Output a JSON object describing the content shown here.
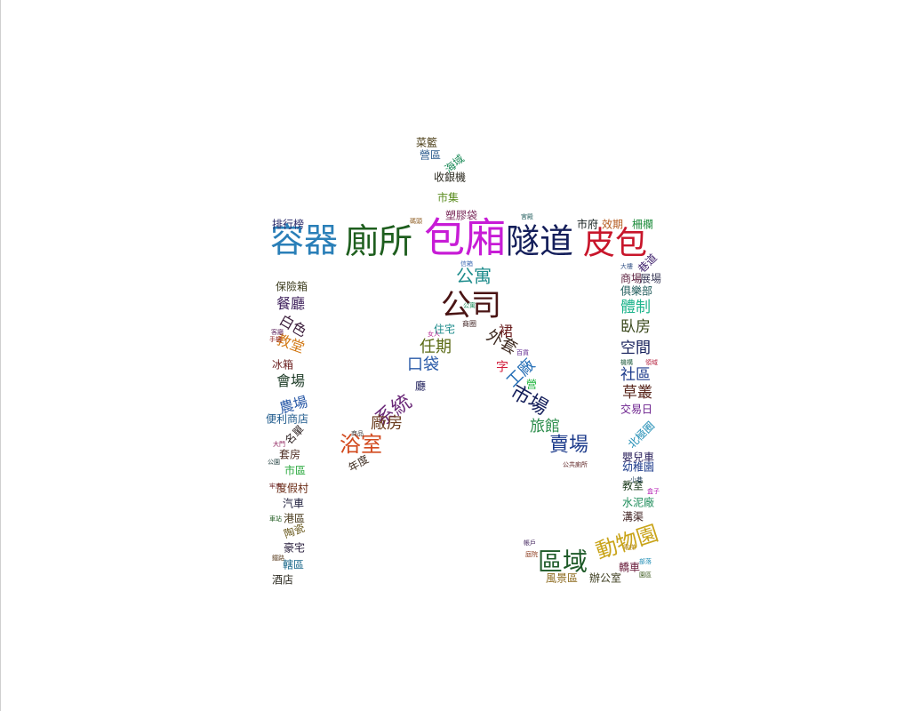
{
  "cloud": {
    "words": [
      {
        "text": "包廂",
        "color": "#c71cd6"
      },
      {
        "text": "容器",
        "color": "#2a7fb8"
      },
      {
        "text": "廁所",
        "color": "#1e5e1e"
      },
      {
        "text": "隧道",
        "color": "#141e5a"
      },
      {
        "text": "皮包",
        "color": "#c8162b"
      },
      {
        "text": "公司",
        "color": "#4a1414"
      },
      {
        "text": "公寓",
        "color": "#1e8c8c"
      },
      {
        "text": "區域",
        "color": "#1e5a28"
      },
      {
        "text": "動物園",
        "color": "#c9a41a"
      },
      {
        "text": "市場",
        "color": "#141e5a"
      },
      {
        "text": "系統",
        "color": "#6a2878"
      },
      {
        "text": "浴室",
        "color": "#d24a1e"
      },
      {
        "text": "賣場",
        "color": "#1e3c8c"
      },
      {
        "text": "口袋",
        "color": "#2a5aa8"
      },
      {
        "text": "任期",
        "color": "#5a6a14"
      },
      {
        "text": "外套",
        "color": "#3c281e"
      },
      {
        "text": "工廠",
        "color": "#1e6ab4"
      },
      {
        "text": "廠房",
        "color": "#6a3c1e"
      },
      {
        "text": "旅館",
        "color": "#2a8c4a"
      },
      {
        "text": "社區",
        "color": "#1e3c8c"
      },
      {
        "text": "空間",
        "color": "#141e5a"
      },
      {
        "text": "臥房",
        "color": "#3c4a1e"
      },
      {
        "text": "草叢",
        "color": "#5a281e"
      },
      {
        "text": "體制",
        "color": "#1eb48c"
      },
      {
        "text": "會場",
        "color": "#1e3c28"
      },
      {
        "text": "農場",
        "color": "#2a5aa8"
      },
      {
        "text": "餐廳",
        "color": "#3c1e5a"
      },
      {
        "text": "白色",
        "color": "#3c1e3c"
      },
      {
        "text": "教堂",
        "color": "#d27814"
      },
      {
        "text": "排行榜",
        "color": "#2a2a6a"
      },
      {
        "text": "保險箱",
        "color": "#3c3c1e"
      },
      {
        "text": "冰箱",
        "color": "#6a1e1e"
      },
      {
        "text": "便利商店",
        "color": "#1e5a8c"
      },
      {
        "text": "名單",
        "color": "#2a1e1e"
      },
      {
        "text": "套房",
        "color": "#4a281e"
      },
      {
        "text": "市區",
        "color": "#28a83c"
      },
      {
        "text": "度假村",
        "color": "#6a2a14"
      },
      {
        "text": "汽車",
        "color": "#1e1e3c"
      },
      {
        "text": "港區",
        "color": "#4a3c1e"
      },
      {
        "text": "陶瓷",
        "color": "#6a5a1e"
      },
      {
        "text": "豪宅",
        "color": "#281e3c"
      },
      {
        "text": "轄區",
        "color": "#1e6a8c"
      },
      {
        "text": "酒店",
        "color": "#2a281e"
      },
      {
        "text": "菜籃",
        "color": "#4a3c14"
      },
      {
        "text": "營區",
        "color": "#2a5a8c"
      },
      {
        "text": "海域",
        "color": "#1e8c5a"
      },
      {
        "text": "收銀機",
        "color": "#2a281e"
      },
      {
        "text": "市集",
        "color": "#5a8c1e"
      },
      {
        "text": "塑膠袋",
        "color": "#7a2a5a"
      },
      {
        "text": "市府",
        "color": "#141e1e"
      },
      {
        "text": "效期",
        "color": "#b45a1e"
      },
      {
        "text": "柵欄",
        "color": "#1e8c3c"
      },
      {
        "text": "巷道",
        "color": "#3c1e6a"
      },
      {
        "text": "商場",
        "color": "#5a1e3c"
      },
      {
        "text": "展場",
        "color": "#3c3c5a"
      },
      {
        "text": "俱樂部",
        "color": "#1e5a5a"
      },
      {
        "text": "交易日",
        "color": "#6a1e8c"
      },
      {
        "text": "北極圈",
        "color": "#1e8cb4"
      },
      {
        "text": "嬰兒車",
        "color": "#281e5a"
      },
      {
        "text": "幼稚園",
        "color": "#1e3c8c"
      },
      {
        "text": "教室",
        "color": "#1e3c1e"
      },
      {
        "text": "水泥廠",
        "color": "#1e8c5a"
      },
      {
        "text": "溝渠",
        "color": "#3c1e1e"
      },
      {
        "text": "轎車",
        "color": "#6a1e3c"
      },
      {
        "text": "風景區",
        "color": "#8c6a1e"
      },
      {
        "text": "辦公室",
        "color": "#3c3c1e"
      },
      {
        "text": "年度",
        "color": "#3c2a1e"
      },
      {
        "text": "商圈",
        "color": "#3c1e1e"
      },
      {
        "text": "住宅",
        "color": "#1e8c8c"
      },
      {
        "text": "裙",
        "color": "#6a1e1e"
      },
      {
        "text": "字",
        "color": "#d21e3c"
      },
      {
        "text": "廳",
        "color": "#1e1e5a"
      },
      {
        "text": "營",
        "color": "#1eb43c"
      },
      {
        "text": "信箱",
        "color": "#3c6ab4"
      },
      {
        "text": "女人",
        "color": "#b41e8c"
      },
      {
        "text": "公寓",
        "color": "#1e8c5a"
      },
      {
        "text": "百貨",
        "color": "#5a1e8c"
      },
      {
        "text": "帳戶",
        "color": "#3c1e5a"
      },
      {
        "text": "庭院",
        "color": "#8c3c1e"
      },
      {
        "text": "大樓",
        "color": "#3c5a8c"
      },
      {
        "text": "機構",
        "color": "#1e5a3c"
      },
      {
        "text": "領域",
        "color": "#b41e3c"
      },
      {
        "text": "公共廁所",
        "color": "#5a1e1e"
      },
      {
        "text": "小巷",
        "color": "#1e3c5a"
      },
      {
        "text": "牢房",
        "color": "#6a1e1e"
      },
      {
        "text": "車站",
        "color": "#1e5a1e"
      },
      {
        "text": "電梯",
        "color": "#b48c1e"
      },
      {
        "text": "大門",
        "color": "#8c1e5a"
      },
      {
        "text": "鐵路",
        "color": "#5a3c1e"
      },
      {
        "text": "部落",
        "color": "#1e8cb4"
      },
      {
        "text": "園區",
        "color": "#3c5a1e"
      },
      {
        "text": "手機",
        "color": "#8c1e1e"
      },
      {
        "text": "盒子",
        "color": "#b41eb4"
      },
      {
        "text": "公園",
        "color": "#1e3c3c"
      },
      {
        "text": "客廳",
        "color": "#5a1e5a"
      },
      {
        "text": "宮殿",
        "color": "#1e5a5a"
      },
      {
        "text": "商品",
        "color": "#3c3c3c"
      },
      {
        "text": "碼頭",
        "color": "#8c5a1e"
      }
    ]
  }
}
